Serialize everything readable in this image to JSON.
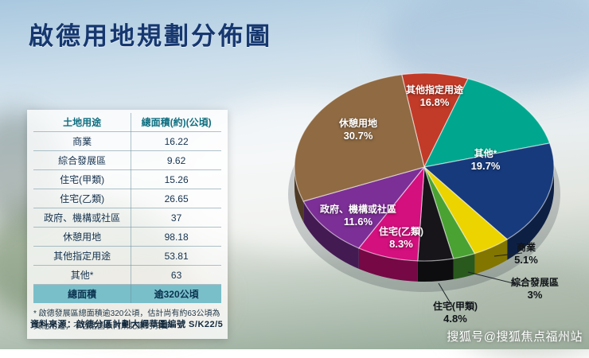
{
  "title": "啟德用地規劃分佈圖",
  "table": {
    "headers": [
      "土地用途",
      "總面積(約)(公頃)"
    ],
    "rows": [
      {
        "label": "商業",
        "value": "16.22"
      },
      {
        "label": "綜合發展區",
        "value": "9.62"
      },
      {
        "label": "住宅(甲類)",
        "value": "15.26"
      },
      {
        "label": "住宅(乙類)",
        "value": "26.65"
      },
      {
        "label": "政府、機構或社區",
        "value": "37"
      },
      {
        "label": "休憩用地",
        "value": "98.18"
      },
      {
        "label": "其他指定用途",
        "value": "53.81"
      },
      {
        "label": "其他*",
        "value": "63"
      }
    ],
    "total_row": {
      "label": "總面積",
      "value": "逾320公頃"
    }
  },
  "footnote": "* 啟德發展區總面積逾320公頃，估計尚有約63公頃為其他用途，不包括圖表內所記錄的項目",
  "source": "資料來源：啟德分區計劃大綱草圖編號 S/K22/5",
  "watermark": "搜狐号@搜狐焦点福州站",
  "chart_data": {
    "type": "pie",
    "title": "啟德用地規劃分佈圖",
    "unit": "percent of total area (逾320公頃)",
    "slices": [
      {
        "label": "",
        "pct": null,
        "pct_text": "",
        "color": "#c23a28"
      },
      {
        "label": "其他指定用途",
        "pct": 16.8,
        "pct_text": "16.8%",
        "color": "#00a78e"
      },
      {
        "label": "其他*",
        "pct": 19.7,
        "pct_text": "19.7%",
        "color": "#173a7c"
      },
      {
        "label": "商業",
        "pct": 5.1,
        "pct_text": "5.1%",
        "color": "#ecd400"
      },
      {
        "label": "綜合發展區",
        "pct": 3,
        "pct_text": "3%",
        "color": "#4aa233"
      },
      {
        "label": "住宅(甲類)",
        "pct": 4.8,
        "pct_text": "4.8%",
        "color": "#17151a"
      },
      {
        "label": "住宅(乙類)",
        "pct": 8.3,
        "pct_text": "8.3%",
        "color": "#d40f7e"
      },
      {
        "label": "政府、機構或社區",
        "pct": 11.6,
        "pct_text": "11.6%",
        "color": "#7c2f96"
      },
      {
        "label": "休憩用地",
        "pct": 30.7,
        "pct_text": "30.7%",
        "color": "#8f6a43"
      }
    ],
    "render": {
      "start_angle_deg": -100,
      "unlabeled_slice_weight": 9,
      "style": "3d"
    }
  }
}
